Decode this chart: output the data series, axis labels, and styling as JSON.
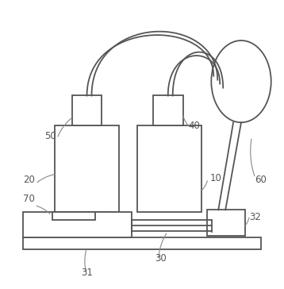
{
  "bg_color": "#ffffff",
  "line_color": "#555555",
  "line_width": 1.3,
  "label_color": "#555555",
  "label_fontsize": 8.5,
  "fig_w": 3.58,
  "fig_h": 3.64
}
